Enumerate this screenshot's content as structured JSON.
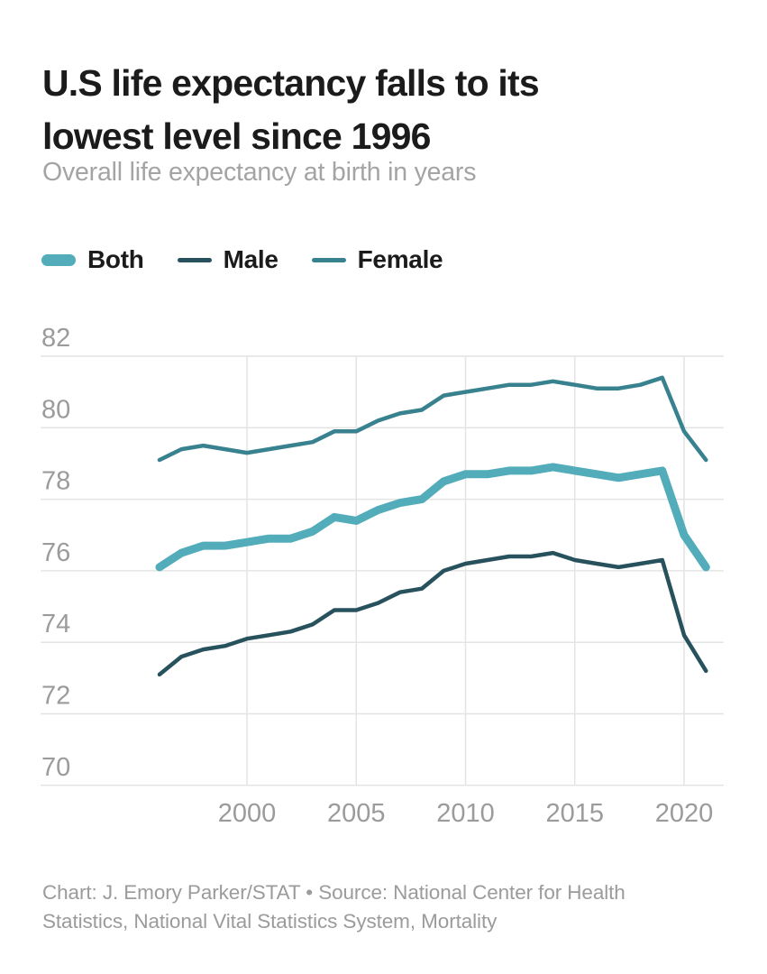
{
  "header": {
    "title_line1": "U.S life expectancy falls to its",
    "title_line2": "lowest level since 1996",
    "subtitle": "Overall life expectancy at birth in years"
  },
  "legend": [
    {
      "label": "Both",
      "color": "#53acba",
      "swatch": "pill"
    },
    {
      "label": "Male",
      "color": "#27525d",
      "swatch": "line"
    },
    {
      "label": "Female",
      "color": "#38818e",
      "swatch": "line"
    }
  ],
  "chart_data": {
    "type": "line",
    "title": "U.S life expectancy falls to its lowest level since 1996",
    "subtitle": "Overall life expectancy at birth in years",
    "x": [
      1996,
      1997,
      1998,
      1999,
      2000,
      2001,
      2002,
      2003,
      2004,
      2005,
      2006,
      2007,
      2008,
      2009,
      2010,
      2011,
      2012,
      2013,
      2014,
      2015,
      2016,
      2017,
      2018,
      2019,
      2020,
      2021
    ],
    "series": [
      {
        "name": "Both",
        "color": "#53acba",
        "stroke_width": 9,
        "values": [
          76.1,
          76.5,
          76.7,
          76.7,
          76.8,
          76.9,
          76.9,
          77.1,
          77.5,
          77.4,
          77.7,
          77.9,
          78.0,
          78.5,
          78.7,
          78.7,
          78.8,
          78.8,
          78.9,
          78.8,
          78.7,
          78.6,
          78.7,
          78.8,
          77.0,
          76.1
        ]
      },
      {
        "name": "Male",
        "color": "#27525d",
        "stroke_width": 4.5,
        "values": [
          73.1,
          73.6,
          73.8,
          73.9,
          74.1,
          74.2,
          74.3,
          74.5,
          74.9,
          74.9,
          75.1,
          75.4,
          75.5,
          76.0,
          76.2,
          76.3,
          76.4,
          76.4,
          76.5,
          76.3,
          76.2,
          76.1,
          76.2,
          76.3,
          74.2,
          73.2
        ]
      },
      {
        "name": "Female",
        "color": "#38818e",
        "stroke_width": 4.5,
        "values": [
          79.1,
          79.4,
          79.5,
          79.4,
          79.3,
          79.4,
          79.5,
          79.6,
          79.9,
          79.9,
          80.2,
          80.4,
          80.5,
          80.9,
          81.0,
          81.1,
          81.2,
          81.2,
          81.3,
          81.2,
          81.1,
          81.1,
          81.2,
          81.4,
          79.9,
          79.1
        ]
      }
    ],
    "x_ticks": [
      2000,
      2005,
      2010,
      2015,
      2020
    ],
    "y_ticks": [
      82,
      80,
      78,
      76,
      74,
      72,
      70
    ],
    "xlim": [
      1996,
      2021
    ],
    "ylim": [
      70,
      82
    ],
    "grid": true,
    "grid_color": "#e4e4e4",
    "tick_color": "#9b9b9b",
    "legend_position": "top-left"
  },
  "footer": {
    "line1": "Chart: J. Emory Parker/STAT • Source: National Center for Health",
    "line2": "Statistics, National Vital Statistics System, Mortality"
  }
}
